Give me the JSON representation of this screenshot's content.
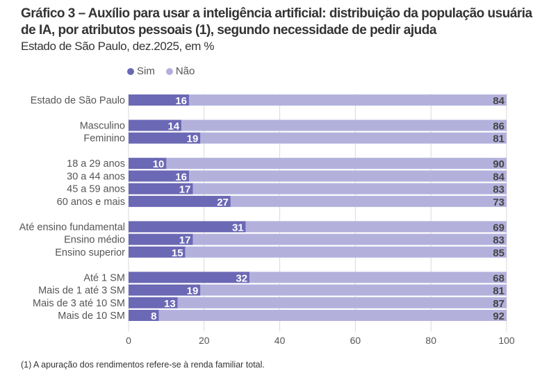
{
  "title": "Gráfico 3 – Auxílio para usar a inteligência artificial: distribuição da população usuária de IA, por atributos pessoais (1), segundo necessidade de pedir ajuda",
  "subtitle": "Estado de São Paulo, dez.2025, em %",
  "footnote": "(1) A apuração dos rendimentos refere-se à renda familiar total.",
  "colors": {
    "sim": "#6b68b5",
    "nao": "#b3b1dc",
    "grid": "#d9d9d9"
  },
  "chart_data": {
    "type": "bar",
    "orientation": "horizontal",
    "stacked": true,
    "categories": [
      "Estado de São Paulo",
      "Masculino",
      "Feminino",
      "18 a 29 anos",
      "30 a 44 anos",
      "45 a 59 anos",
      "60 anos e mais",
      "Até ensino fundamental",
      "Ensino médio",
      "Ensino superior",
      "Até 1 SM",
      "Mais de 1 até 3 SM",
      "Mais de 3 até 10 SM",
      "Mais de 10 SM"
    ],
    "groups": [
      [
        0
      ],
      [
        1,
        2
      ],
      [
        3,
        4,
        5,
        6
      ],
      [
        7,
        8,
        9
      ],
      [
        10,
        11,
        12,
        13
      ]
    ],
    "series": [
      {
        "name": "Sim",
        "values": [
          16,
          14,
          19,
          10,
          16,
          17,
          27,
          31,
          17,
          15,
          32,
          19,
          13,
          8
        ]
      },
      {
        "name": "Não",
        "values": [
          84,
          86,
          81,
          90,
          84,
          83,
          73,
          69,
          83,
          85,
          68,
          81,
          87,
          92
        ]
      }
    ],
    "xlim": [
      0,
      100
    ],
    "xticks": [
      "0",
      "20",
      "40",
      "60",
      "80",
      "100"
    ],
    "grid": true,
    "legend": "top-left"
  }
}
